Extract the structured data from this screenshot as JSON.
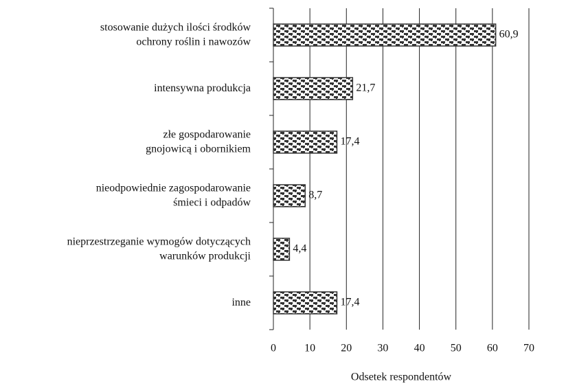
{
  "chart_data": {
    "type": "barh",
    "categories": [
      [
        "stosowanie dużych ilości środków",
        "ochrony roślin i nawozów"
      ],
      [
        "intensywna produkcja"
      ],
      [
        "złe gospodarowanie",
        "gnojowicą i obornikiem"
      ],
      [
        "nieodpowiednie zagospodarowanie",
        "śmieci i odpadów"
      ],
      [
        "nieprzestrzeganie wymogów dotyczących",
        "warunków produkcji"
      ],
      [
        "inne"
      ]
    ],
    "values": [
      60.9,
      21.7,
      17.4,
      8.7,
      4.4,
      17.4
    ],
    "value_labels": [
      "60,9",
      "21,7",
      "17,4",
      "8,7",
      "4,4",
      "17,4"
    ],
    "xlabel": "Odsetek respondentów",
    "xlim": [
      0,
      70
    ],
    "xticks": [
      0,
      10,
      20,
      30,
      40,
      50,
      60,
      70
    ],
    "grid": true,
    "color": "#333333"
  }
}
